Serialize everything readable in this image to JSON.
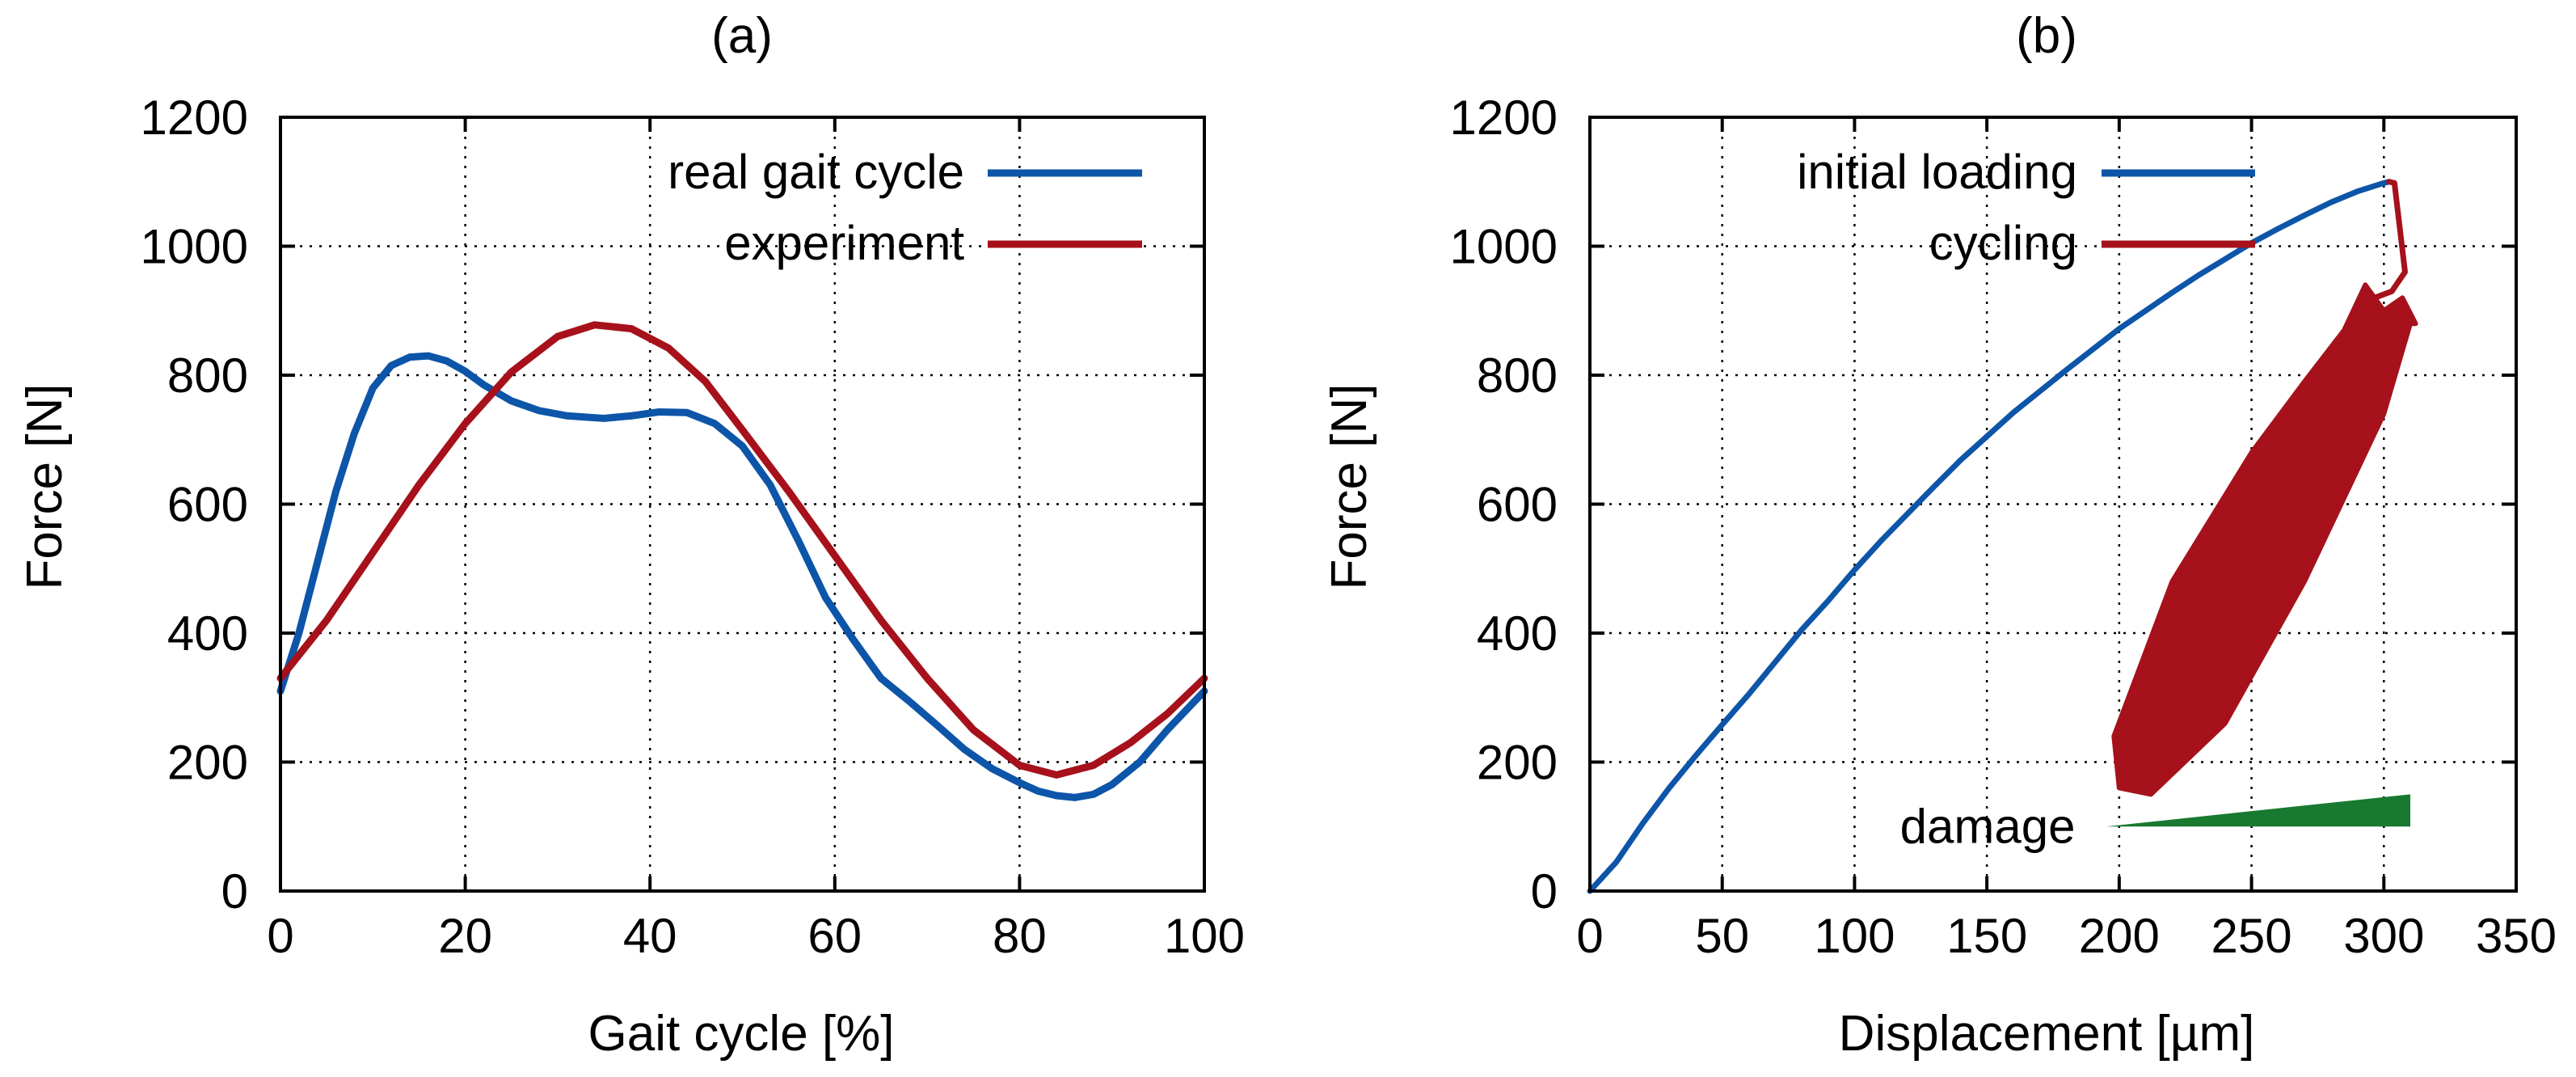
{
  "chart_data": [
    {
      "type": "line",
      "title": "(a)",
      "xlabel": "Gait cycle [%]",
      "ylabel": "Force [N]",
      "xlim": [
        0,
        100
      ],
      "ylim": [
        0,
        1200
      ],
      "xticks": [
        0,
        20,
        40,
        60,
        80,
        100
      ],
      "yticks": [
        0,
        200,
        400,
        600,
        800,
        1000,
        1200
      ],
      "xtick_labels": [
        "0",
        "20",
        "40",
        "60",
        "80",
        "100"
      ],
      "ytick_labels": [
        "0",
        "200",
        "400",
        "600",
        "800",
        "1000",
        "1200"
      ],
      "grid": true,
      "legend": "top-right",
      "series": [
        {
          "name": "real gait cycle",
          "color": "#0d55a8",
          "x": [
            0,
            2,
            4,
            6,
            8,
            10,
            12,
            14,
            16,
            18,
            20,
            22,
            25,
            28,
            31,
            35,
            38,
            41,
            44,
            47,
            50,
            53,
            56,
            59,
            62,
            65,
            68,
            71,
            74,
            77,
            80,
            82,
            84,
            86,
            88,
            90,
            93,
            96,
            100
          ],
          "y": [
            310,
            400,
            510,
            620,
            710,
            780,
            815,
            828,
            830,
            822,
            806,
            785,
            760,
            745,
            737,
            733,
            737,
            743,
            742,
            725,
            690,
            630,
            545,
            455,
            390,
            330,
            295,
            258,
            220,
            190,
            168,
            155,
            148,
            145,
            150,
            165,
            200,
            250,
            310
          ]
        },
        {
          "name": "experiment",
          "color": "#a6111b",
          "x": [
            0,
            5,
            10,
            15,
            20,
            25,
            30,
            34,
            38,
            42,
            46,
            50,
            55,
            60,
            65,
            70,
            75,
            80,
            84,
            88,
            92,
            96,
            100
          ],
          "y": [
            330,
            420,
            525,
            630,
            725,
            805,
            860,
            878,
            872,
            842,
            790,
            715,
            620,
            520,
            420,
            330,
            250,
            195,
            180,
            195,
            230,
            275,
            330
          ]
        }
      ]
    },
    {
      "type": "line",
      "title": "(b)",
      "xlabel": "Displacement [µm]",
      "ylabel": "Force [N]",
      "xlim": [
        0,
        350
      ],
      "ylim": [
        0,
        1200
      ],
      "xticks": [
        0,
        50,
        100,
        150,
        200,
        250,
        300,
        350
      ],
      "yticks": [
        0,
        200,
        400,
        600,
        800,
        1000,
        1200
      ],
      "xtick_labels": [
        "0",
        "50",
        "100",
        "150",
        "200",
        "250",
        "300",
        "350"
      ],
      "ytick_labels": [
        "0",
        "200",
        "400",
        "600",
        "800",
        "1000",
        "1200"
      ],
      "grid": true,
      "legend": "top-left",
      "series": [
        {
          "name": "initial loading",
          "color": "#0d55a8",
          "x": [
            0,
            10,
            20,
            30,
            40,
            50,
            60,
            70,
            80,
            90,
            100,
            110,
            120,
            130,
            140,
            150,
            160,
            170,
            180,
            190,
            200,
            210,
            220,
            230,
            240,
            250,
            260,
            270,
            280,
            290,
            300,
            302
          ],
          "y": [
            0,
            45,
            105,
            160,
            210,
            258,
            305,
            355,
            405,
            450,
            498,
            543,
            585,
            627,
            668,
            705,
            742,
            775,
            808,
            840,
            872,
            900,
            928,
            955,
            980,
            1005,
            1027,
            1048,
            1068,
            1085,
            1098,
            1100
          ]
        },
        {
          "name": "cycling",
          "color": "#a6111b",
          "x": [
            302,
            304,
            308,
            303,
            290
          ],
          "y": [
            1100,
            1098,
            960,
            930,
            910
          ]
        }
      ],
      "cycling_band": {
        "color": "#a6111b",
        "lower_edge": {
          "x": [
            200,
            212,
            240,
            270,
            300,
            310
          ],
          "y": [
            160,
            150,
            260,
            480,
            740,
            880
          ]
        },
        "upper_edge": {
          "x": [
            198,
            220,
            250,
            270,
            285,
            293,
            300,
            307,
            312
          ],
          "y": [
            240,
            480,
            680,
            790,
            870,
            940,
            900,
            920,
            880
          ]
        }
      },
      "damage_wedge": {
        "label": "damage",
        "color": "#177a30",
        "x": [
          195,
          310
        ],
        "y_base": 100,
        "y_top_end": 150
      }
    }
  ]
}
